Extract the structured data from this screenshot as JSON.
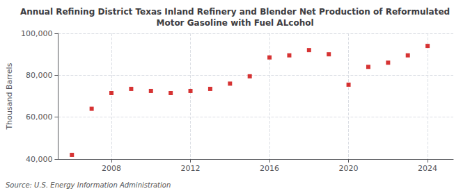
{
  "chart_data": {
    "type": "scatter",
    "title": "Annual Refining District Texas Inland Refinery and Blender Net Production of Reformulated\nMotor Gasoline with Fuel ALcohol",
    "ylabel": "Thousand Barrels",
    "source": "Source: U.S. Energy Information Administration",
    "x": [
      2006,
      2007,
      2008,
      2009,
      2010,
      2011,
      2012,
      2013,
      2014,
      2015,
      2016,
      2017,
      2018,
      2019,
      2020,
      2021,
      2022,
      2023,
      2024
    ],
    "values": [
      42000,
      64000,
      71500,
      73500,
      72500,
      71500,
      72500,
      73500,
      76000,
      79500,
      88500,
      89500,
      92000,
      90000,
      75500,
      84000,
      86000,
      89500,
      94000
    ],
    "color": "#cc0000",
    "marker": "square",
    "xlim": [
      2005.3,
      2025.3
    ],
    "xticks": [
      2008,
      2012,
      2016,
      2020,
      2024
    ],
    "ylim": [
      40000,
      100000
    ],
    "yticks": [
      {
        "value": 40000,
        "label": "40,000"
      },
      {
        "value": 60000,
        "label": "60,000"
      },
      {
        "value": 80000,
        "label": "80,000"
      },
      {
        "value": 100000,
        "label": "100,000"
      }
    ],
    "grid": true
  }
}
